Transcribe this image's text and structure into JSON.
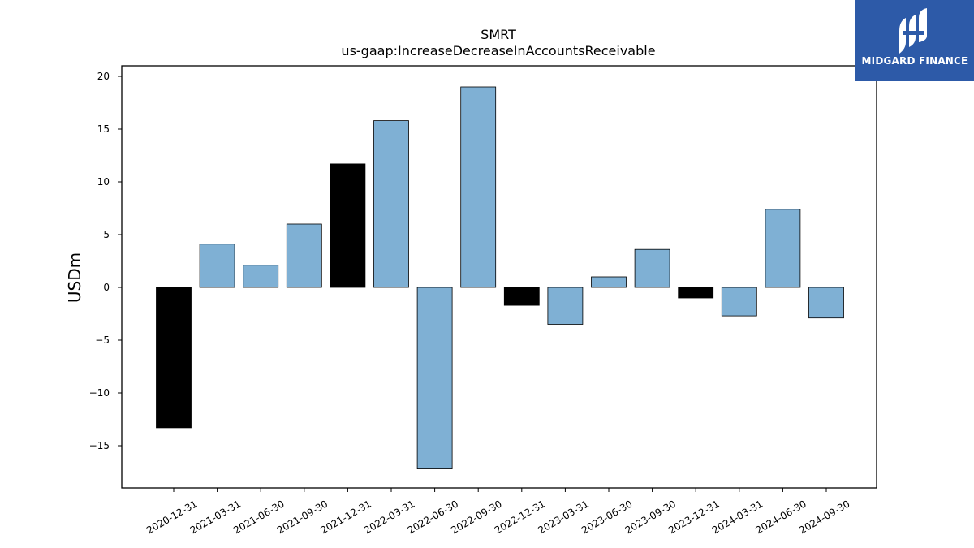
{
  "chart_data": {
    "type": "bar",
    "title": "SMRT",
    "subtitle": "us-gaap:IncreaseDecreaseInAccountsReceivable",
    "xlabel": "",
    "ylabel": "USDm",
    "ylim": [
      -19,
      21
    ],
    "yticks": [
      20,
      15,
      10,
      5,
      0,
      -5,
      -10,
      -15
    ],
    "ytick_labels": [
      "20",
      "15",
      "10",
      "5",
      "0",
      "−5",
      "−10",
      "−15"
    ],
    "grid": false,
    "categories": [
      "2020-12-31",
      "2021-03-31",
      "2021-06-30",
      "2021-09-30",
      "2021-12-31",
      "2022-03-31",
      "2022-06-30",
      "2022-09-30",
      "2022-12-31",
      "2023-03-31",
      "2023-06-30",
      "2023-09-30",
      "2023-12-31",
      "2024-03-31",
      "2024-06-30",
      "2024-09-30"
    ],
    "values": [
      -13.3,
      4.1,
      2.1,
      6.0,
      11.7,
      15.8,
      -17.2,
      19.0,
      -1.7,
      -3.5,
      1.0,
      3.6,
      -1.0,
      -2.7,
      7.4,
      -2.9
    ],
    "bar_colors": [
      "#000000",
      "#7fb0d4",
      "#7fb0d4",
      "#7fb0d4",
      "#000000",
      "#7fb0d4",
      "#7fb0d4",
      "#7fb0d4",
      "#000000",
      "#7fb0d4",
      "#7fb0d4",
      "#7fb0d4",
      "#000000",
      "#7fb0d4",
      "#7fb0d4",
      "#7fb0d4"
    ]
  },
  "logo": {
    "text": "MIDGARD FINANCE",
    "background": "#2d5aa8",
    "icon": "midgard-logo-icon"
  }
}
